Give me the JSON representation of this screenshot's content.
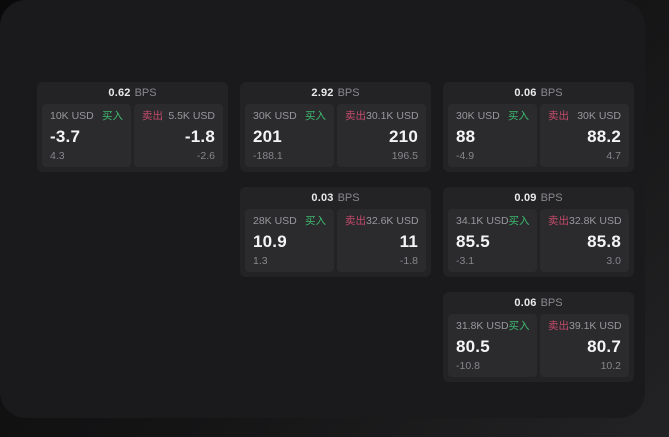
{
  "labels": {
    "bps_unit": "BPS",
    "buy": "买入",
    "sell": "卖出"
  },
  "colors": {
    "buy_green": "#3dbb70",
    "sell_red": "#c4496a",
    "window_bg": "#1a1a1c",
    "card_bg": "#232325",
    "subpanel_bg": "#2b2b2d"
  },
  "cards": [
    {
      "bps": "0.62",
      "buy": {
        "amount": "10K USD",
        "value": "-3.7",
        "delta": "4.3"
      },
      "sell": {
        "amount": "5.5K USD",
        "value": "-1.8",
        "delta": "-2.6"
      }
    },
    {
      "bps": "2.92",
      "buy": {
        "amount": "30K USD",
        "value": "201",
        "delta": "-188.1"
      },
      "sell": {
        "amount": "30.1K USD",
        "value": "210",
        "delta": "196.5"
      }
    },
    {
      "bps": "0.06",
      "buy": {
        "amount": "30K USD",
        "value": "88",
        "delta": "-4.9"
      },
      "sell": {
        "amount": "30K USD",
        "value": "88.2",
        "delta": "4.7"
      }
    },
    {
      "bps": "0.03",
      "buy": {
        "amount": "28K USD",
        "value": "10.9",
        "delta": "1.3"
      },
      "sell": {
        "amount": "32.6K USD",
        "value": "11",
        "delta": "-1.8"
      }
    },
    {
      "bps": "0.09",
      "buy": {
        "amount": "34.1K USD",
        "value": "85.5",
        "delta": "-3.1"
      },
      "sell": {
        "amount": "32.8K USD",
        "value": "85.8",
        "delta": "3.0"
      }
    },
    {
      "bps": "0.06",
      "buy": {
        "amount": "31.8K USD",
        "value": "80.5",
        "delta": "-10.8"
      },
      "sell": {
        "amount": "39.1K USD",
        "value": "80.7",
        "delta": "10.2"
      }
    }
  ]
}
